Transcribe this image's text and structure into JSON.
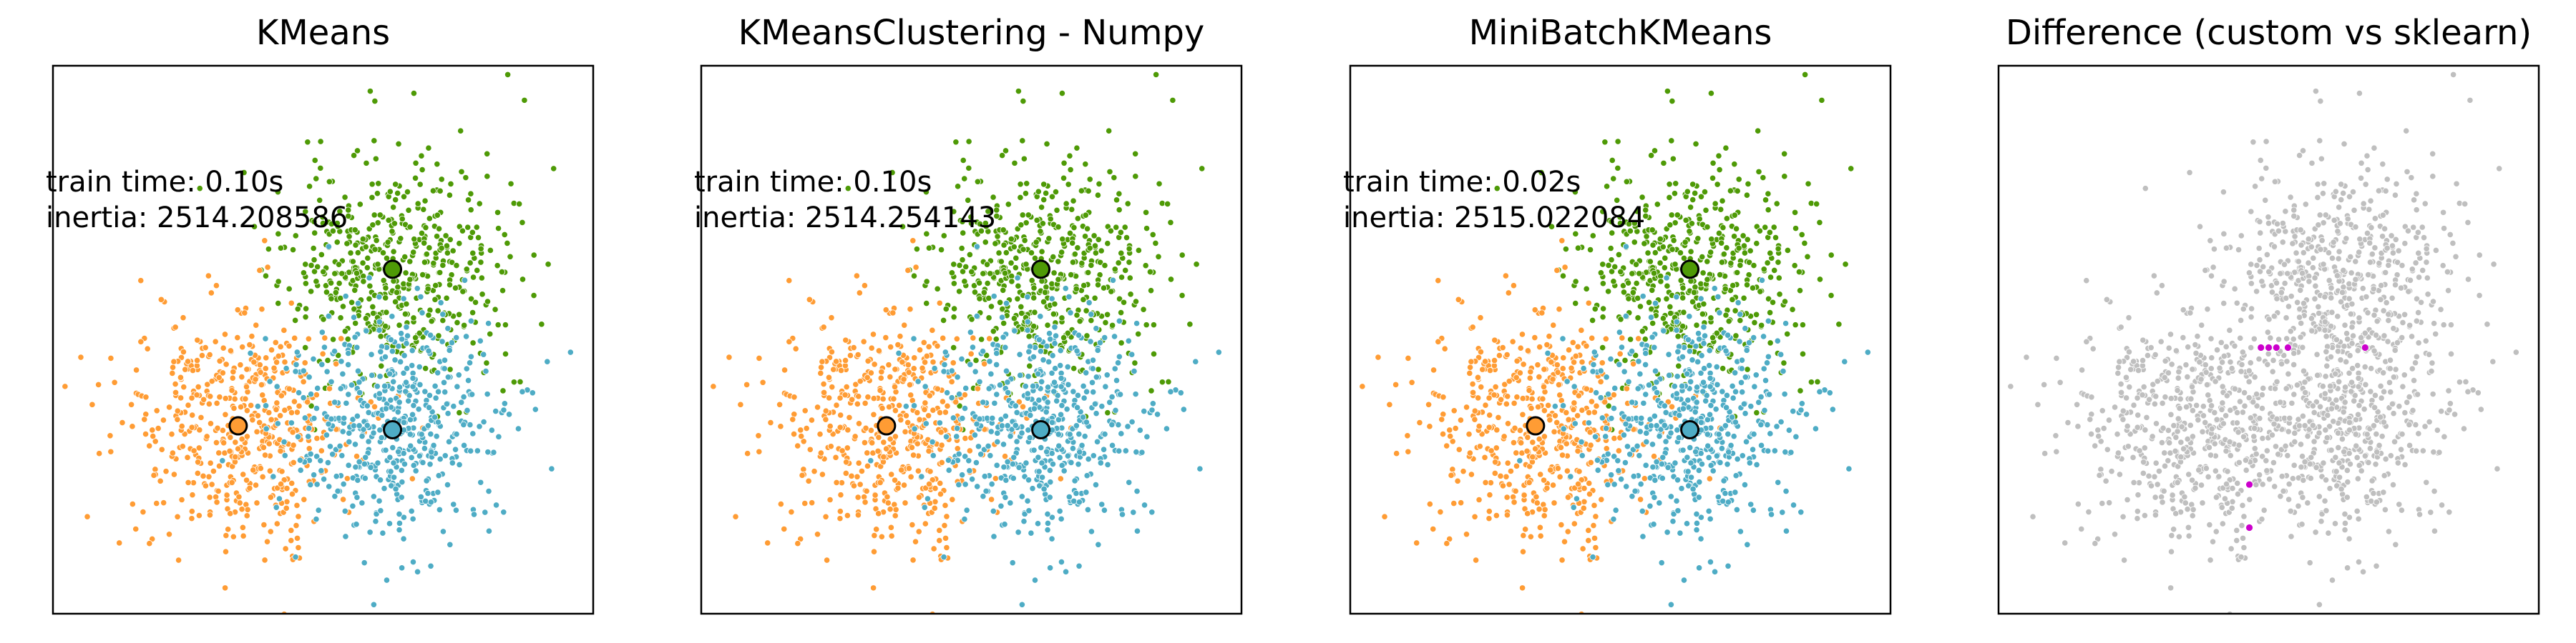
{
  "colors": {
    "orange": "#FF9C34",
    "teal": "#4EACC5",
    "green": "#4E9A06",
    "gray": "#BFBFBF",
    "magenta": "#CC00CC",
    "axes_frame": "#000000"
  },
  "chart_data": [
    {
      "type": "scatter",
      "title": "KMeans",
      "annotations": [
        "train time: 0.10s",
        "inertia: 2514.208586"
      ],
      "grid": false,
      "ticks": false,
      "centers": [
        {
          "name": "",
          "color": "#4E9A06",
          "x": 1.0,
          "y": 1.0
        },
        {
          "name": "",
          "color": "#FF9C34",
          "x": -1.0,
          "y": -1.0
        },
        {
          "name": "",
          "color": "#4EACC5",
          "x": 1.0,
          "y": -1.05
        }
      ],
      "clusters": [
        {
          "color": "#4E9A06",
          "center": [
            1.0,
            1.0
          ],
          "spread": 0.72,
          "n": 520,
          "seed": 11
        },
        {
          "color": "#FF9C34",
          "center": [
            -1.0,
            -1.0
          ],
          "spread": 0.72,
          "n": 520,
          "seed": 22
        },
        {
          "color": "#4EACC5",
          "center": [
            1.0,
            -1.0
          ],
          "spread": 0.72,
          "n": 520,
          "seed": 33
        }
      ],
      "xlim": [
        -3.4,
        3.6
      ],
      "ylim": [
        -3.4,
        3.6
      ]
    },
    {
      "type": "scatter",
      "title": "KMeansClustering - Numpy",
      "annotations": [
        "train time: 0.10s",
        "inertia: 2514.254143"
      ],
      "grid": false,
      "ticks": false,
      "centers": [
        {
          "name": "",
          "color": "#4E9A06",
          "x": 1.0,
          "y": 1.0
        },
        {
          "name": "",
          "color": "#FF9C34",
          "x": -1.0,
          "y": -1.0
        },
        {
          "name": "",
          "color": "#4EACC5",
          "x": 1.0,
          "y": -1.05
        }
      ],
      "clusters": [
        {
          "color": "#4E9A06",
          "center": [
            1.0,
            1.0
          ],
          "spread": 0.72,
          "n": 520,
          "seed": 11
        },
        {
          "color": "#FF9C34",
          "center": [
            -1.0,
            -1.0
          ],
          "spread": 0.72,
          "n": 520,
          "seed": 22
        },
        {
          "color": "#4EACC5",
          "center": [
            1.0,
            -1.0
          ],
          "spread": 0.72,
          "n": 520,
          "seed": 33
        }
      ],
      "xlim": [
        -3.4,
        3.6
      ],
      "ylim": [
        -3.4,
        3.6
      ]
    },
    {
      "type": "scatter",
      "title": "MiniBatchKMeans",
      "annotations": [
        "train time: 0.02s",
        "inertia: 2515.022084"
      ],
      "grid": false,
      "ticks": false,
      "centers": [
        {
          "name": "",
          "color": "#4E9A06",
          "x": 1.0,
          "y": 1.0
        },
        {
          "name": "",
          "color": "#FF9C34",
          "x": -1.0,
          "y": -1.0
        },
        {
          "name": "",
          "color": "#4EACC5",
          "x": 1.0,
          "y": -1.05
        }
      ],
      "clusters": [
        {
          "color": "#4E9A06",
          "center": [
            1.0,
            1.0
          ],
          "spread": 0.72,
          "n": 520,
          "seed": 11
        },
        {
          "color": "#FF9C34",
          "center": [
            -1.0,
            -1.0
          ],
          "spread": 0.72,
          "n": 520,
          "seed": 22
        },
        {
          "color": "#4EACC5",
          "center": [
            1.0,
            -1.0
          ],
          "spread": 0.72,
          "n": 520,
          "seed": 33
        }
      ],
      "xlim": [
        -3.4,
        3.6
      ],
      "ylim": [
        -3.4,
        3.6
      ]
    },
    {
      "type": "scatter",
      "title": "Difference (custom vs sklearn)",
      "annotations": [],
      "grid": false,
      "ticks": false,
      "centers": [],
      "clusters": [
        {
          "color": "#BFBFBF",
          "center": [
            1.0,
            1.0
          ],
          "spread": 0.72,
          "n": 520,
          "seed": 11
        },
        {
          "color": "#BFBFBF",
          "center": [
            -1.0,
            -1.0
          ],
          "spread": 0.72,
          "n": 520,
          "seed": 22
        },
        {
          "color": "#BFBFBF",
          "center": [
            1.0,
            -1.0
          ],
          "spread": 0.72,
          "n": 520,
          "seed": 33
        }
      ],
      "highlight_points": {
        "color": "#CC00CC",
        "points": [
          [
            0.0,
            0.0
          ],
          [
            0.1,
            0.0
          ],
          [
            0.2,
            0.0
          ],
          [
            0.35,
            0.0
          ],
          [
            1.35,
            0.0
          ],
          [
            -0.15,
            -1.75
          ],
          [
            -0.15,
            -2.3
          ]
        ]
      },
      "xlim": [
        -3.4,
        3.6
      ],
      "ylim": [
        -3.4,
        3.6
      ]
    }
  ]
}
